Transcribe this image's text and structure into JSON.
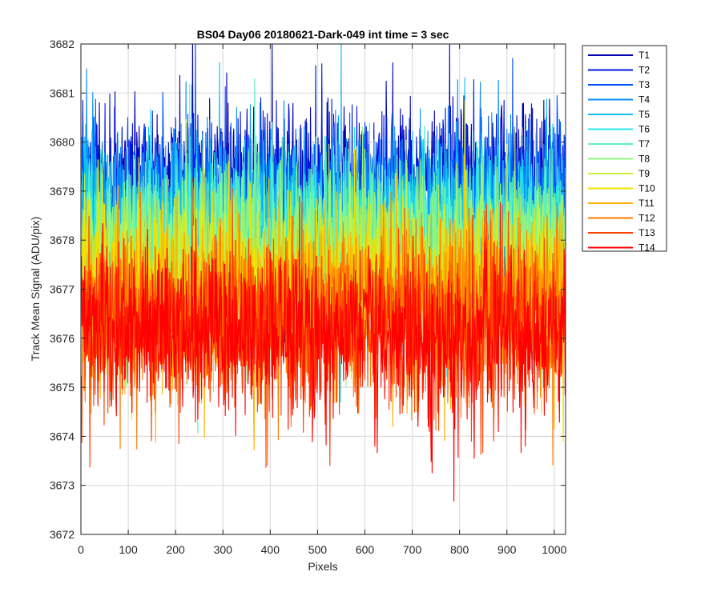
{
  "chart_data": {
    "type": "line",
    "title": "BS04 Day06 20180621-Dark-049 int time = 3 sec",
    "xlabel": "Pixels",
    "ylabel": "Track Mean Signal (ADU/pix)",
    "xlim": [
      0,
      1024
    ],
    "ylim": [
      3672,
      3682
    ],
    "x_ticks": [
      0,
      100,
      200,
      300,
      400,
      500,
      600,
      700,
      800,
      900,
      1000
    ],
    "y_ticks": [
      3672,
      3673,
      3674,
      3675,
      3676,
      3677,
      3678,
      3679,
      3680,
      3681,
      3682
    ],
    "grid": true,
    "legend_position": "outside-top-right",
    "noise_sigma": 0.85,
    "series": [
      {
        "name": "T1",
        "color": "#0000b3",
        "mean": 3679.0
      },
      {
        "name": "T2",
        "color": "#0016e0",
        "mean": 3678.9
      },
      {
        "name": "T3",
        "color": "#0050ff",
        "mean": 3678.6
      },
      {
        "name": "T4",
        "color": "#0a8cff",
        "mean": 3678.5
      },
      {
        "name": "T5",
        "color": "#11c0f0",
        "mean": 3678.3
      },
      {
        "name": "T6",
        "color": "#2ce6e6",
        "mean": 3678.1
      },
      {
        "name": "T7",
        "color": "#60f0b8",
        "mean": 3677.9
      },
      {
        "name": "T8",
        "color": "#90f580",
        "mean": 3677.7
      },
      {
        "name": "T9",
        "color": "#c8f040",
        "mean": 3677.3
      },
      {
        "name": "T10",
        "color": "#f0e000",
        "mean": 3677.0
      },
      {
        "name": "T11",
        "color": "#ffb000",
        "mean": 3676.8
      },
      {
        "name": "T12",
        "color": "#ff7a00",
        "mean": 3676.5
      },
      {
        "name": "T13",
        "color": "#ff4000",
        "mean": 3676.3
      },
      {
        "name": "T14",
        "color": "#ff0000",
        "mean": 3676.1
      }
    ]
  }
}
